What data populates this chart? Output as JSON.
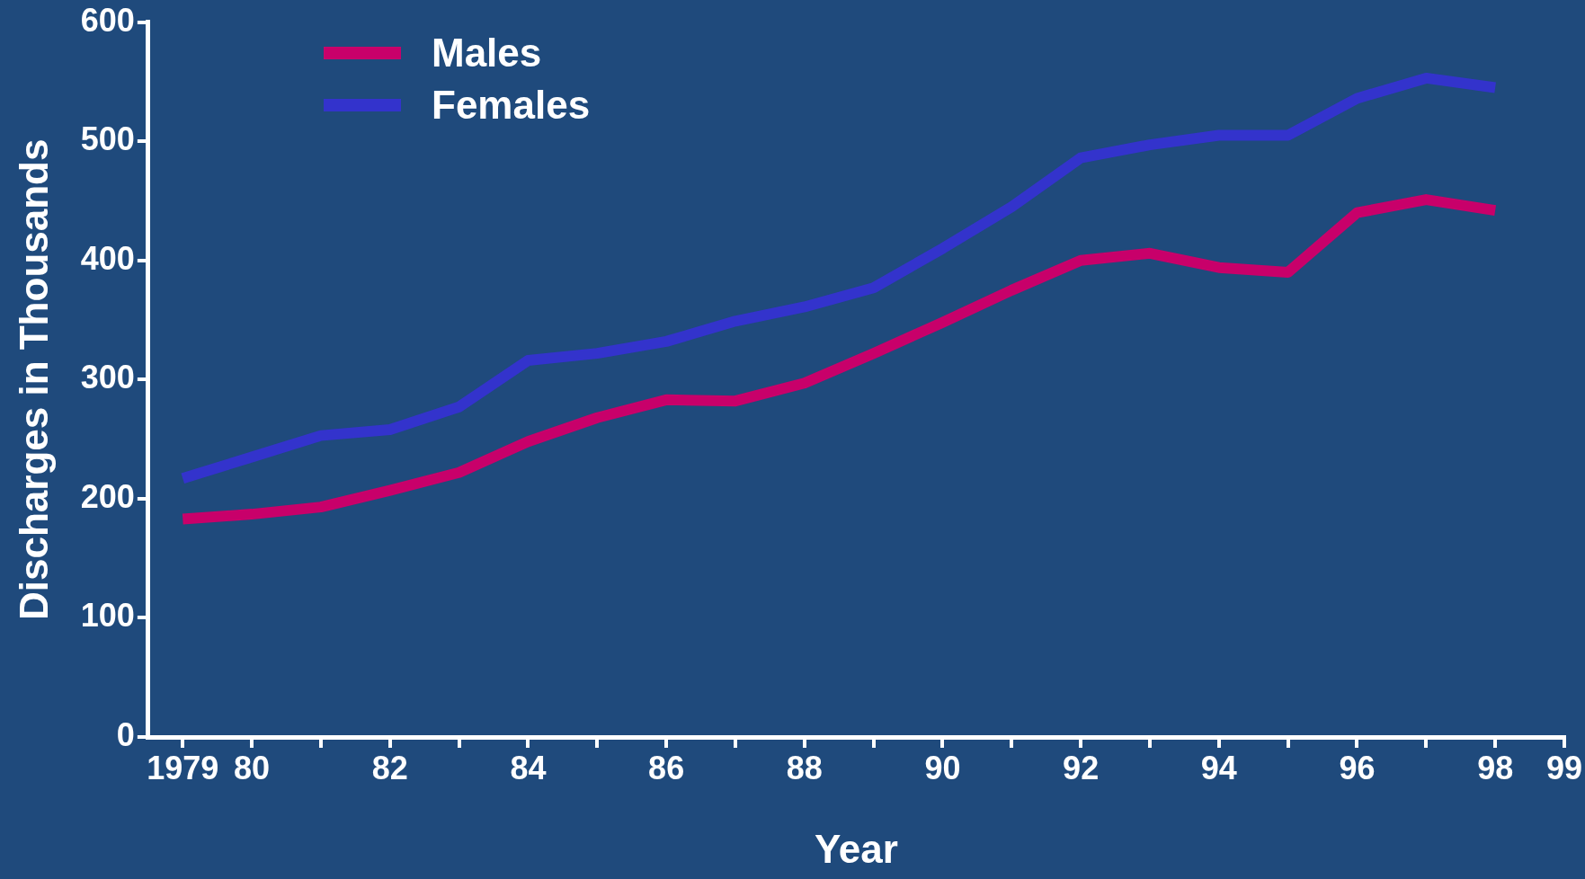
{
  "chart_data": {
    "type": "line",
    "xlabel": "Year",
    "ylabel": "Discharges in Thousands",
    "x": [
      1979,
      1980,
      1981,
      1982,
      1983,
      1984,
      1985,
      1986,
      1987,
      1988,
      1989,
      1990,
      1991,
      1992,
      1993,
      1994,
      1995,
      1996,
      1997,
      1998
    ],
    "series": [
      {
        "name": "Males",
        "color": "#c8006a",
        "values": [
          183,
          187,
          193,
          207,
          222,
          248,
          268,
          283,
          282,
          297,
          322,
          348,
          375,
          400,
          406,
          394,
          390,
          440,
          451,
          442
        ]
      },
      {
        "name": "Females",
        "color": "#3333cc",
        "values": [
          217,
          235,
          253,
          258,
          277,
          316,
          322,
          332,
          349,
          361,
          377,
          410,
          445,
          486,
          497,
          505,
          505,
          536,
          553,
          545
        ]
      }
    ],
    "xlim": [
      1978.5,
      1999
    ],
    "xticks": [
      {
        "value": 1979,
        "label": "1979"
      },
      {
        "value": 1980,
        "label": "80"
      },
      {
        "value": 1981,
        "label": null
      },
      {
        "value": 1982,
        "label": "82"
      },
      {
        "value": 1983,
        "label": null
      },
      {
        "value": 1984,
        "label": "84"
      },
      {
        "value": 1985,
        "label": null
      },
      {
        "value": 1986,
        "label": "86"
      },
      {
        "value": 1987,
        "label": null
      },
      {
        "value": 1988,
        "label": "88"
      },
      {
        "value": 1989,
        "label": null
      },
      {
        "value": 1990,
        "label": "90"
      },
      {
        "value": 1991,
        "label": null
      },
      {
        "value": 1992,
        "label": "92"
      },
      {
        "value": 1993,
        "label": null
      },
      {
        "value": 1994,
        "label": "94"
      },
      {
        "value": 1995,
        "label": null
      },
      {
        "value": 1996,
        "label": "96"
      },
      {
        "value": 1997,
        "label": null
      },
      {
        "value": 1998,
        "label": "98"
      },
      {
        "value": 1999,
        "label": "99"
      }
    ],
    "ylim": [
      0,
      600
    ],
    "yticks": [
      0,
      100,
      200,
      300,
      400,
      500,
      600
    ],
    "grid": false,
    "legend": "top left",
    "marker": "none",
    "line_style": "solid"
  }
}
